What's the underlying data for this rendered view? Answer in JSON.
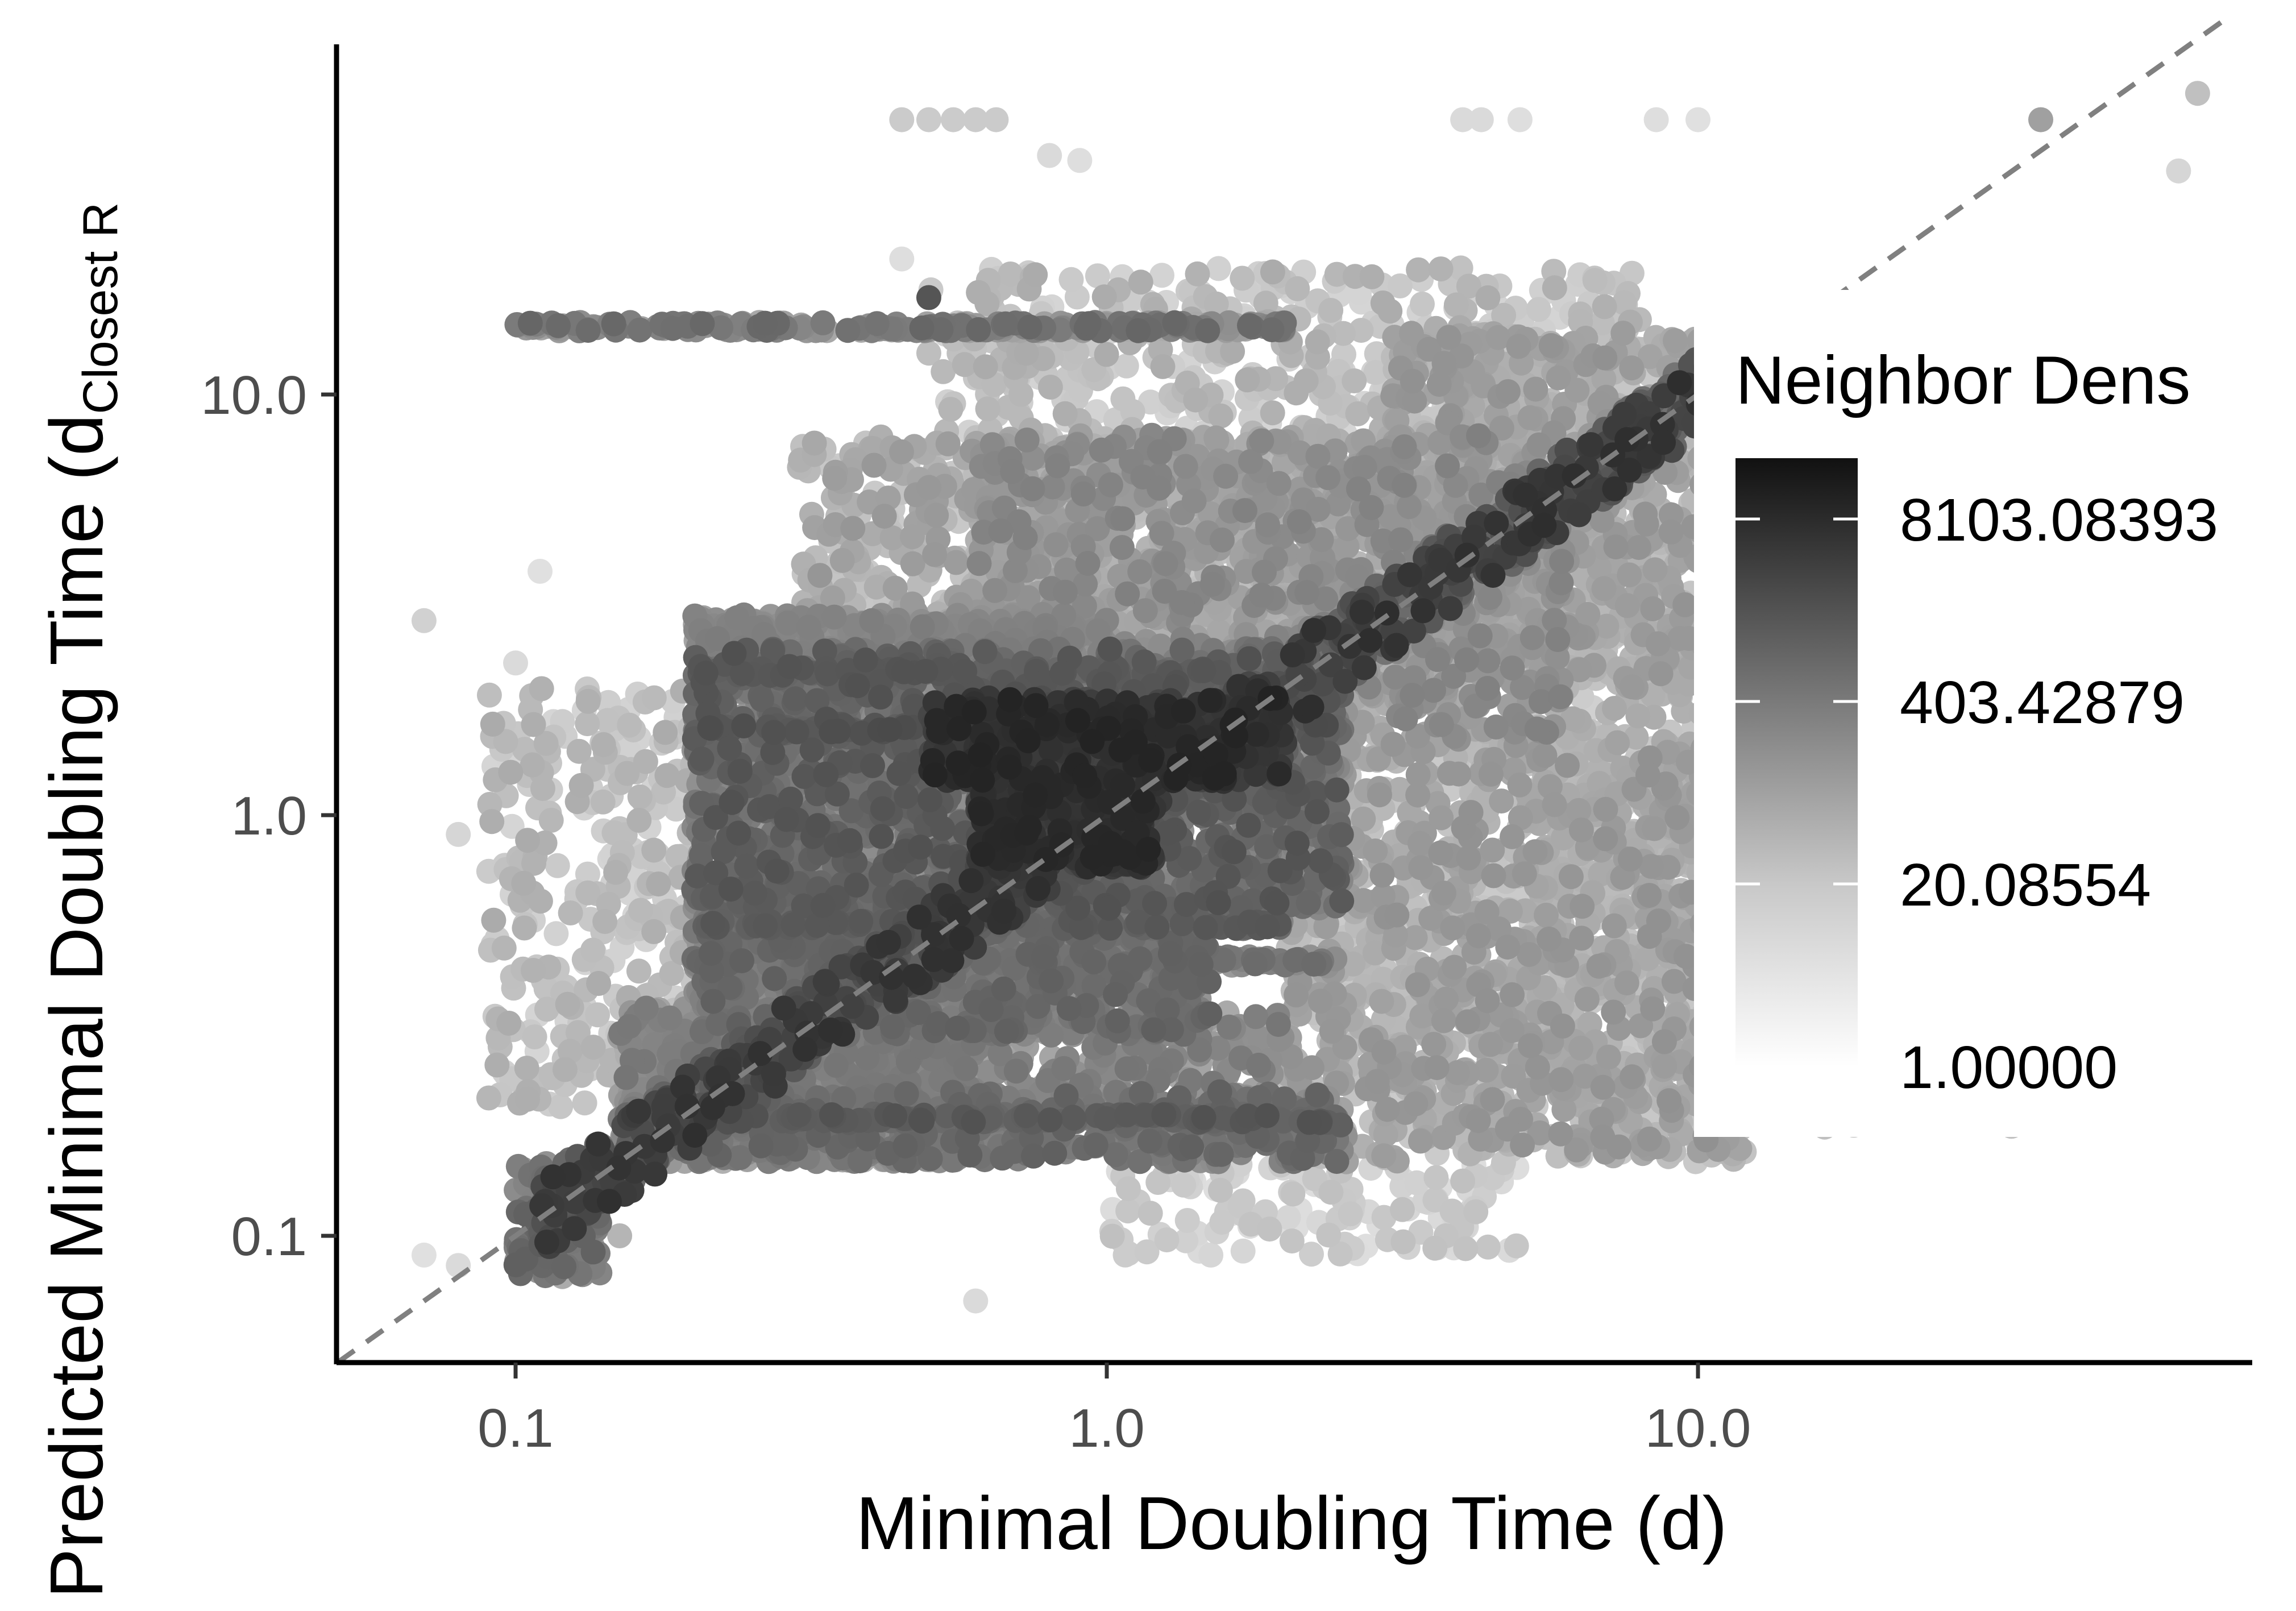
{
  "chart_data": {
    "type": "scatter",
    "xlabel": "Minimal Doubling Time (d)",
    "ylabel": "Predicted Minimal Doubling Time (d",
    "ylabel_subscript": "Closest R",
    "x_scale": "log10",
    "y_scale": "log10",
    "xlim": [
      0.05,
      80
    ],
    "ylim": [
      0.055,
      70
    ],
    "x_ticks": [
      0.1,
      1.0,
      10.0
    ],
    "x_tick_labels": [
      "0.1",
      "1.0",
      "10.0"
    ],
    "y_ticks": [
      0.1,
      1.0,
      10.0
    ],
    "y_tick_labels": [
      "0.1",
      "1.0",
      "10.0"
    ],
    "grid": false,
    "reference_line": {
      "style": "dashed",
      "from": [
        0.05,
        0.05
      ],
      "to": [
        80,
        80
      ],
      "description": "y = x"
    },
    "point_size": 22,
    "density_legend": {
      "title": "Neighbor Dens",
      "placement": "right",
      "scale": "log",
      "labels": [
        "8103.08393",
        "403.42879",
        "20.08554",
        "1.00000"
      ],
      "values": [
        8103.08393,
        403.42879,
        20.08554,
        1.0
      ],
      "max": 22026,
      "color_low": "#ffffff",
      "color_high": "#111111"
    },
    "bands": [
      {
        "x": [
          0.1,
          0.14
        ],
        "y": [
          0.08,
          0.15
        ],
        "n": 160,
        "d": [
          0.35,
          0.65
        ]
      },
      {
        "x": [
          0.18,
          0.6
        ],
        "y": [
          0.15,
          0.3
        ],
        "n": 900,
        "d": [
          0.25,
          0.55
        ]
      },
      {
        "x": [
          0.2,
          1.5
        ],
        "y": [
          0.3,
          0.7
        ],
        "n": 1400,
        "d": [
          0.3,
          0.65
        ]
      },
      {
        "x": [
          0.2,
          2.5
        ],
        "y": [
          0.6,
          2.5
        ],
        "n": 2200,
        "d": [
          0.35,
          0.72
        ]
      },
      {
        "x": [
          0.5,
          2.0
        ],
        "y": [
          1.2,
          1.9
        ],
        "n": 500,
        "d": [
          0.72,
          0.93
        ]
      },
      {
        "x": [
          0.6,
          1.2
        ],
        "y": [
          0.75,
          1.2
        ],
        "n": 320,
        "d": [
          0.72,
          0.92
        ]
      },
      {
        "x": [
          0.6,
          6.0
        ],
        "y": [
          1.5,
          8.0
        ],
        "n": 1500,
        "d": [
          0.2,
          0.5
        ]
      },
      {
        "x": [
          2.0,
          12.0
        ],
        "y": [
          0.15,
          1.5
        ],
        "n": 1400,
        "d": [
          0.15,
          0.42
        ]
      },
      {
        "x": [
          3.0,
          20.0
        ],
        "y": [
          2.0,
          14.0
        ],
        "n": 1500,
        "d": [
          0.15,
          0.42
        ]
      },
      {
        "x": [
          0.09,
          0.2
        ],
        "y": [
          0.2,
          2.0
        ],
        "n": 320,
        "d": [
          0.1,
          0.3
        ]
      },
      {
        "x": [
          0.15,
          2.5
        ],
        "y": [
          0.15,
          0.22
        ],
        "n": 500,
        "d": [
          0.4,
          0.65
        ]
      },
      {
        "x": [
          0.15,
          2.0
        ],
        "y": [
          0.2,
          0.35
        ],
        "n": 500,
        "d": [
          0.3,
          0.55
        ]
      },
      {
        "x": [
          1.0,
          5.0
        ],
        "y": [
          0.09,
          0.15
        ],
        "n": 130,
        "d": [
          0.06,
          0.2
        ]
      },
      {
        "x": [
          10.0,
          40.0
        ],
        "y": [
          0.18,
          12.0
        ],
        "n": 700,
        "d": [
          0.08,
          0.25
        ]
      },
      {
        "x": [
          0.5,
          8.0
        ],
        "y": [
          8.0,
          20.0
        ],
        "n": 420,
        "d": [
          0.1,
          0.3
        ]
      },
      {
        "x": [
          0.3,
          3.0
        ],
        "y": [
          3.0,
          8.0
        ],
        "n": 500,
        "d": [
          0.15,
          0.4
        ]
      },
      {
        "x": [
          5.0,
          20.0
        ],
        "y": [
          0.2,
          2.0
        ],
        "n": 600,
        "d": [
          0.12,
          0.32
        ]
      },
      {
        "x": [
          0.2,
          1.0
        ],
        "y": [
          2.4,
          3.0
        ],
        "n": 220,
        "d": [
          0.3,
          0.52
        ]
      }
    ],
    "diagonal_points": {
      "x_range": [
        0.11,
        12.0
      ],
      "n": 1100,
      "spread": 0.09,
      "d": [
        0.55,
        0.88
      ]
    },
    "horizontal_bands": [
      {
        "x": [
          0.1,
          2.0
        ],
        "y": 14.5,
        "n": 260,
        "d": [
          0.3,
          0.62
        ]
      },
      {
        "x": [
          0.2,
          1.0
        ],
        "y": 2.8,
        "n": 160,
        "d": [
          0.3,
          0.5
        ]
      },
      {
        "x": [
          0.2,
          2.0
        ],
        "y": 2.2,
        "n": 220,
        "d": [
          0.45,
          0.7
        ]
      },
      {
        "x": [
          0.2,
          2.5
        ],
        "y": 1.6,
        "n": 240,
        "d": [
          0.5,
          0.75
        ]
      },
      {
        "x": [
          0.2,
          2.0
        ],
        "y": 0.55,
        "n": 220,
        "d": [
          0.45,
          0.7
        ]
      },
      {
        "x": [
          0.2,
          2.5
        ],
        "y": 0.45,
        "n": 220,
        "d": [
          0.35,
          0.6
        ]
      },
      {
        "x": [
          0.2,
          2.5
        ],
        "y": 0.19,
        "n": 240,
        "d": [
          0.5,
          0.72
        ]
      }
    ],
    "outliers": [
      {
        "x": 0.07,
        "y": 0.09,
        "d": 0.05
      },
      {
        "x": 0.08,
        "y": 0.085,
        "d": 0.08
      },
      {
        "x": 0.12,
        "y": 0.08,
        "d": 0.3
      },
      {
        "x": 0.07,
        "y": 2.9,
        "d": 0.12
      },
      {
        "x": 0.08,
        "y": 0.9,
        "d": 0.1
      },
      {
        "x": 0.11,
        "y": 3.8,
        "d": 0.05
      },
      {
        "x": 0.1,
        "y": 2.3,
        "d": 0.08
      },
      {
        "x": 0.5,
        "y": 45.0,
        "d": 0.15
      },
      {
        "x": 0.55,
        "y": 45.0,
        "d": 0.15
      },
      {
        "x": 0.6,
        "y": 45.0,
        "d": 0.15
      },
      {
        "x": 0.65,
        "y": 45.0,
        "d": 0.15
      },
      {
        "x": 0.45,
        "y": 45.0,
        "d": 0.15
      },
      {
        "x": 0.8,
        "y": 37.0,
        "d": 0.08
      },
      {
        "x": 0.9,
        "y": 36.0,
        "d": 0.06
      },
      {
        "x": 4.0,
        "y": 45.0,
        "d": 0.08
      },
      {
        "x": 4.3,
        "y": 45.0,
        "d": 0.08
      },
      {
        "x": 5.0,
        "y": 45.0,
        "d": 0.06
      },
      {
        "x": 8.5,
        "y": 45.0,
        "d": 0.06
      },
      {
        "x": 10.0,
        "y": 45.0,
        "d": 0.05
      },
      {
        "x": 38.0,
        "y": 45.0,
        "d": 0.35
      },
      {
        "x": 70.0,
        "y": 52.0,
        "d": 0.2
      },
      {
        "x": 65.0,
        "y": 34.0,
        "d": 0.1
      },
      {
        "x": 0.45,
        "y": 21.0,
        "d": 0.06
      },
      {
        "x": 0.5,
        "y": 17.0,
        "d": 0.7
      },
      {
        "x": 1.5,
        "y": 0.09,
        "d": 0.1
      },
      {
        "x": 1.7,
        "y": 0.092,
        "d": 0.1
      },
      {
        "x": 0.6,
        "y": 0.07,
        "d": 0.08
      },
      {
        "x": 3.5,
        "y": 0.12,
        "d": 0.1
      },
      {
        "x": 4.0,
        "y": 0.135,
        "d": 0.2
      },
      {
        "x": 13.0,
        "y": 0.21,
        "d": 0.06
      },
      {
        "x": 20.0,
        "y": 0.2,
        "d": 0.06
      },
      {
        "x": 28.0,
        "y": 0.2,
        "d": 0.05
      },
      {
        "x": 45.0,
        "y": 0.2,
        "d": 0.05
      },
      {
        "x": 18.0,
        "y": 0.2,
        "d": 0.06
      },
      {
        "x": 0.15,
        "y": 0.1,
        "d": 0.25
      }
    ]
  }
}
